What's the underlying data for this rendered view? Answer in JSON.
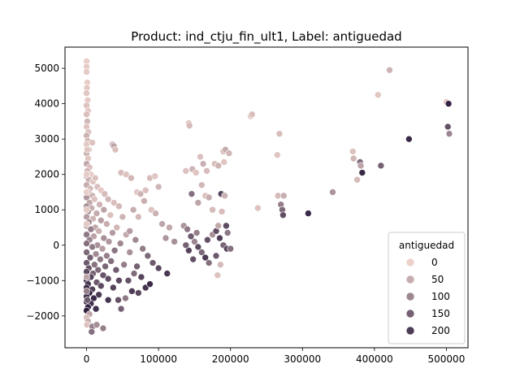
{
  "chart_data": {
    "type": "scatter",
    "title": "Product: ind_ctju_fin_ult1, Label: antiguedad",
    "xlabel": "",
    "ylabel": "",
    "xlim": [
      -30000,
      530000
    ],
    "ylim": [
      -2900,
      5600
    ],
    "xticks": [
      0,
      100000,
      200000,
      300000,
      400000,
      500000
    ],
    "xtick_labels": [
      "0",
      "100000",
      "200000",
      "300000",
      "400000",
      "500000"
    ],
    "yticks": [
      -2000,
      -1000,
      0,
      1000,
      2000,
      3000,
      4000,
      5000
    ],
    "ytick_labels": [
      "−2000",
      "−1000",
      "0",
      "1000",
      "2000",
      "3000",
      "4000",
      "5000"
    ],
    "grid": false,
    "hue": {
      "name": "antiguedad",
      "min": 0,
      "max": 240,
      "color_low": "#edd1cb",
      "color_high": "#2d1e3e"
    },
    "legend": {
      "title": "antiguedad",
      "placement": "lower-right",
      "entries": [
        {
          "label": "0",
          "value": 0
        },
        {
          "label": "50",
          "value": 50
        },
        {
          "label": "100",
          "value": 100
        },
        {
          "label": "150",
          "value": 150
        },
        {
          "label": "200",
          "value": 200
        }
      ]
    },
    "points": [
      {
        "x": 0,
        "y": 5200,
        "c": 5
      },
      {
        "x": 0,
        "y": 5050,
        "c": 8
      },
      {
        "x": 0,
        "y": 4900,
        "c": 10
      },
      {
        "x": 1000,
        "y": 4600,
        "c": 6
      },
      {
        "x": 500,
        "y": 4450,
        "c": 12
      },
      {
        "x": 0,
        "y": 4300,
        "c": 15
      },
      {
        "x": 1500,
        "y": 4100,
        "c": 9
      },
      {
        "x": 0,
        "y": 3950,
        "c": 20
      },
      {
        "x": 2000,
        "y": 3800,
        "c": 14
      },
      {
        "x": 0,
        "y": 3700,
        "c": 25
      },
      {
        "x": 1000,
        "y": 3500,
        "c": 35
      },
      {
        "x": 0,
        "y": 3350,
        "c": 18
      },
      {
        "x": 2500,
        "y": 3200,
        "c": 22
      },
      {
        "x": 0,
        "y": 3100,
        "c": 40
      },
      {
        "x": 1500,
        "y": 2950,
        "c": 30
      },
      {
        "x": 0,
        "y": 2850,
        "c": 12
      },
      {
        "x": 3000,
        "y": 2700,
        "c": 28
      },
      {
        "x": 8000,
        "y": 2900,
        "c": 20
      },
      {
        "x": 0,
        "y": 2600,
        "c": 45
      },
      {
        "x": 2000,
        "y": 2450,
        "c": 15
      },
      {
        "x": 0,
        "y": 2300,
        "c": 55
      },
      {
        "x": 4000,
        "y": 2200,
        "c": 25
      },
      {
        "x": 1000,
        "y": 2100,
        "c": 35
      },
      {
        "x": 6000,
        "y": 2000,
        "c": 10
      },
      {
        "x": 0,
        "y": 1950,
        "c": 60
      },
      {
        "x": 3000,
        "y": 1850,
        "c": 42
      },
      {
        "x": 9000,
        "y": 1800,
        "c": 18
      },
      {
        "x": 12000,
        "y": 1900,
        "c": 22
      },
      {
        "x": 0,
        "y": 1700,
        "c": 50
      },
      {
        "x": 5000,
        "y": 1600,
        "c": 30
      },
      {
        "x": 15000,
        "y": 1650,
        "c": 26
      },
      {
        "x": 2000,
        "y": 1500,
        "c": 65
      },
      {
        "x": 20000,
        "y": 1550,
        "c": 12
      },
      {
        "x": 8000,
        "y": 1400,
        "c": 40
      },
      {
        "x": 25000,
        "y": 1450,
        "c": 30
      },
      {
        "x": 0,
        "y": 1350,
        "c": 75
      },
      {
        "x": 11000,
        "y": 1300,
        "c": 20
      },
      {
        "x": 30000,
        "y": 1300,
        "c": 35
      },
      {
        "x": 4000,
        "y": 1200,
        "c": 55
      },
      {
        "x": 18000,
        "y": 1150,
        "c": 38
      },
      {
        "x": 38000,
        "y": 1200,
        "c": 25
      },
      {
        "x": 0,
        "y": 1100,
        "c": 85
      },
      {
        "x": 7000,
        "y": 1050,
        "c": 45
      },
      {
        "x": 24000,
        "y": 1000,
        "c": 60
      },
      {
        "x": 45000,
        "y": 1100,
        "c": 32
      },
      {
        "x": 2000,
        "y": 950,
        "c": 95
      },
      {
        "x": 14000,
        "y": 900,
        "c": 50
      },
      {
        "x": 33000,
        "y": 850,
        "c": 22
      },
      {
        "x": 0,
        "y": 800,
        "c": 70
      },
      {
        "x": 9000,
        "y": 750,
        "c": 38
      },
      {
        "x": 20000,
        "y": 700,
        "c": 66
      },
      {
        "x": 50000,
        "y": 800,
        "c": 40
      },
      {
        "x": 3000,
        "y": 650,
        "c": 100
      },
      {
        "x": 28000,
        "y": 600,
        "c": 48
      },
      {
        "x": 0,
        "y": 550,
        "c": 80
      },
      {
        "x": 12000,
        "y": 500,
        "c": 58
      },
      {
        "x": 42000,
        "y": 500,
        "c": 35
      },
      {
        "x": 6000,
        "y": 450,
        "c": 110
      },
      {
        "x": 17000,
        "y": 400,
        "c": 44
      },
      {
        "x": 36000,
        "y": 350,
        "c": 72
      },
      {
        "x": 0,
        "y": 300,
        "c": 120
      },
      {
        "x": 10000,
        "y": 250,
        "c": 64
      },
      {
        "x": 24000,
        "y": 200,
        "c": 90
      },
      {
        "x": 55000,
        "y": 300,
        "c": 52
      },
      {
        "x": 4000,
        "y": 150,
        "c": 105
      },
      {
        "x": 31000,
        "y": 100,
        "c": 76
      },
      {
        "x": 0,
        "y": 50,
        "c": 130
      },
      {
        "x": 15000,
        "y": 0,
        "c": 84
      },
      {
        "x": 47000,
        "y": 50,
        "c": 98
      },
      {
        "x": 8000,
        "y": -50,
        "c": 115
      },
      {
        "x": 22000,
        "y": -100,
        "c": 70
      },
      {
        "x": 39000,
        "y": -150,
        "c": 122
      },
      {
        "x": 0,
        "y": -200,
        "c": 140
      },
      {
        "x": 13000,
        "y": -250,
        "c": 92
      },
      {
        "x": 28000,
        "y": -300,
        "c": 108
      },
      {
        "x": 60000,
        "y": -200,
        "c": 86
      },
      {
        "x": 5000,
        "y": -350,
        "c": 150
      },
      {
        "x": 19000,
        "y": -400,
        "c": 118
      },
      {
        "x": 34000,
        "y": -450,
        "c": 132
      },
      {
        "x": 0,
        "y": -500,
        "c": 160
      },
      {
        "x": 11000,
        "y": -550,
        "c": 126
      },
      {
        "x": 26000,
        "y": -600,
        "c": 144
      },
      {
        "x": 52000,
        "y": -550,
        "c": 112
      },
      {
        "x": 3000,
        "y": -650,
        "c": 170
      },
      {
        "x": 16000,
        "y": -700,
        "c": 138
      },
      {
        "x": 41000,
        "y": -700,
        "c": 156
      },
      {
        "x": 0,
        "y": -750,
        "c": 180
      },
      {
        "x": 9000,
        "y": -800,
        "c": 148
      },
      {
        "x": 23000,
        "y": -850,
        "c": 166
      },
      {
        "x": 66000,
        "y": -800,
        "c": 134
      },
      {
        "x": 6000,
        "y": -900,
        "c": 190
      },
      {
        "x": 30000,
        "y": -950,
        "c": 174
      },
      {
        "x": 0,
        "y": -1000,
        "c": 200
      },
      {
        "x": 14000,
        "y": -1050,
        "c": 162
      },
      {
        "x": 45000,
        "y": -1000,
        "c": 184
      },
      {
        "x": 2000,
        "y": -1100,
        "c": 210
      },
      {
        "x": 20000,
        "y": -1150,
        "c": 178
      },
      {
        "x": 0,
        "y": -1200,
        "c": 220
      },
      {
        "x": 8000,
        "y": -1250,
        "c": 196
      },
      {
        "x": 37000,
        "y": -1200,
        "c": 188
      },
      {
        "x": 4000,
        "y": -1350,
        "c": 230
      },
      {
        "x": 17000,
        "y": -1400,
        "c": 204
      },
      {
        "x": 0,
        "y": -1450,
        "c": 215
      },
      {
        "x": 10000,
        "y": -1500,
        "c": 225
      },
      {
        "x": 30000,
        "y": -1550,
        "c": 208
      },
      {
        "x": 0,
        "y": -1600,
        "c": 235
      },
      {
        "x": 6000,
        "y": -1650,
        "c": 212
      },
      {
        "x": 2000,
        "y": -1750,
        "c": 226
      },
      {
        "x": 13000,
        "y": -1800,
        "c": 218
      },
      {
        "x": 0,
        "y": -1850,
        "c": 238
      },
      {
        "x": 4000,
        "y": -1950,
        "c": 60
      },
      {
        "x": 0,
        "y": -2050,
        "c": 30
      },
      {
        "x": 2000,
        "y": -2150,
        "c": 50
      },
      {
        "x": 500,
        "y": -2250,
        "c": 20
      },
      {
        "x": 8000,
        "y": -2300,
        "c": 110
      },
      {
        "x": 14000,
        "y": -2250,
        "c": 90
      },
      {
        "x": 7000,
        "y": -2450,
        "c": 130
      },
      {
        "x": 23000,
        "y": -2350,
        "c": 110
      },
      {
        "x": 48000,
        "y": -1800,
        "c": 150
      },
      {
        "x": 44000,
        "y": -1550,
        "c": 170
      },
      {
        "x": 54000,
        "y": -1500,
        "c": 120
      },
      {
        "x": 0,
        "y": 1000,
        "c": 10
      },
      {
        "x": 0,
        "y": 1500,
        "c": 5
      },
      {
        "x": 0,
        "y": 2000,
        "c": 8
      },
      {
        "x": 1000,
        "y": 2700,
        "c": 15
      },
      {
        "x": 0,
        "y": 600,
        "c": 12
      },
      {
        "x": 0,
        "y": -900,
        "c": 60
      },
      {
        "x": 0,
        "y": -1300,
        "c": 110
      },
      {
        "x": 1000,
        "y": -1550,
        "c": 160
      },
      {
        "x": 36000,
        "y": 2850,
        "c": 30
      },
      {
        "x": 38000,
        "y": 2800,
        "c": 60
      },
      {
        "x": 40000,
        "y": 2700,
        "c": 22
      },
      {
        "x": 48000,
        "y": 2050,
        "c": 28
      },
      {
        "x": 55000,
        "y": 2000,
        "c": 20
      },
      {
        "x": 62000,
        "y": 1900,
        "c": 35
      },
      {
        "x": 70000,
        "y": 1500,
        "c": 14
      },
      {
        "x": 75000,
        "y": 1450,
        "c": 40
      },
      {
        "x": 82000,
        "y": 1550,
        "c": 24
      },
      {
        "x": 88000,
        "y": 1900,
        "c": 30
      },
      {
        "x": 95000,
        "y": 1950,
        "c": 16
      },
      {
        "x": 100000,
        "y": 1650,
        "c": 38
      },
      {
        "x": 65000,
        "y": 1000,
        "c": 50
      },
      {
        "x": 72000,
        "y": 800,
        "c": 32
      },
      {
        "x": 80000,
        "y": 1250,
        "c": 44
      },
      {
        "x": 90000,
        "y": 1000,
        "c": 20
      },
      {
        "x": 105000,
        "y": 600,
        "c": 60
      },
      {
        "x": 110000,
        "y": 200,
        "c": 80
      },
      {
        "x": 60000,
        "y": 400,
        "c": 70
      },
      {
        "x": 68000,
        "y": 150,
        "c": 96
      },
      {
        "x": 78000,
        "y": -100,
        "c": 112
      },
      {
        "x": 85000,
        "y": -300,
        "c": 140
      },
      {
        "x": 92000,
        "y": -500,
        "c": 158
      },
      {
        "x": 100000,
        "y": -650,
        "c": 180
      },
      {
        "x": 70000,
        "y": -600,
        "c": 150
      },
      {
        "x": 76000,
        "y": -900,
        "c": 190
      },
      {
        "x": 82000,
        "y": -1200,
        "c": 212
      },
      {
        "x": 58000,
        "y": -1000,
        "c": 170
      },
      {
        "x": 63000,
        "y": -1300,
        "c": 200
      },
      {
        "x": 72000,
        "y": -1350,
        "c": 185
      },
      {
        "x": 88000,
        "y": -1100,
        "c": 222
      },
      {
        "x": 96000,
        "y": 900,
        "c": 42
      },
      {
        "x": 112000,
        "y": -800,
        "c": 205
      },
      {
        "x": 115000,
        "y": 500,
        "c": 55
      },
      {
        "x": 122000,
        "y": 100,
        "c": 88
      },
      {
        "x": 142000,
        "y": 3450,
        "c": 15
      },
      {
        "x": 143000,
        "y": 3380,
        "c": 30
      },
      {
        "x": 138000,
        "y": 2100,
        "c": 20
      },
      {
        "x": 147000,
        "y": 2150,
        "c": 40
      },
      {
        "x": 152000,
        "y": 2050,
        "c": 18
      },
      {
        "x": 158000,
        "y": 2500,
        "c": 22
      },
      {
        "x": 162000,
        "y": 2300,
        "c": 45
      },
      {
        "x": 167000,
        "y": 2100,
        "c": 28
      },
      {
        "x": 160000,
        "y": 1700,
        "c": 35
      },
      {
        "x": 146000,
        "y": 1450,
        "c": 130
      },
      {
        "x": 155000,
        "y": 1200,
        "c": 60
      },
      {
        "x": 165000,
        "y": 1400,
        "c": 20
      },
      {
        "x": 170000,
        "y": 1350,
        "c": 48
      },
      {
        "x": 175000,
        "y": 1000,
        "c": 30
      },
      {
        "x": 135000,
        "y": 550,
        "c": 80
      },
      {
        "x": 140000,
        "y": 450,
        "c": 120
      },
      {
        "x": 145000,
        "y": 250,
        "c": 160
      },
      {
        "x": 150000,
        "y": 100,
        "c": 100
      },
      {
        "x": 155000,
        "y": -50,
        "c": 180
      },
      {
        "x": 160000,
        "y": -200,
        "c": 140
      },
      {
        "x": 165000,
        "y": -350,
        "c": 200
      },
      {
        "x": 170000,
        "y": -500,
        "c": 130
      },
      {
        "x": 148000,
        "y": -400,
        "c": 170
      },
      {
        "x": 142000,
        "y": -150,
        "c": 190
      },
      {
        "x": 138000,
        "y": 0,
        "c": 150
      },
      {
        "x": 153000,
        "y": 350,
        "c": 110
      },
      {
        "x": 168000,
        "y": 150,
        "c": 170
      },
      {
        "x": 175000,
        "y": 300,
        "c": 90
      },
      {
        "x": 180000,
        "y": 400,
        "c": 175
      },
      {
        "x": 185000,
        "y": 200,
        "c": 200
      },
      {
        "x": 190000,
        "y": 0,
        "c": 145
      },
      {
        "x": 195000,
        "y": -100,
        "c": 190
      },
      {
        "x": 180000,
        "y": -300,
        "c": 160
      },
      {
        "x": 186000,
        "y": -550,
        "c": 30
      },
      {
        "x": 182000,
        "y": -850,
        "c": 20
      },
      {
        "x": 200000,
        "y": -100,
        "c": 130
      },
      {
        "x": 178000,
        "y": 2300,
        "c": 25
      },
      {
        "x": 183000,
        "y": 2250,
        "c": 40
      },
      {
        "x": 190000,
        "y": 2650,
        "c": 22
      },
      {
        "x": 193000,
        "y": 2700,
        "c": 50
      },
      {
        "x": 198000,
        "y": 2600,
        "c": 35
      },
      {
        "x": 191000,
        "y": 2350,
        "c": 18
      },
      {
        "x": 187000,
        "y": 1450,
        "c": 190
      },
      {
        "x": 192000,
        "y": 1400,
        "c": 42
      },
      {
        "x": 188000,
        "y": 950,
        "c": 28
      },
      {
        "x": 194000,
        "y": 550,
        "c": 180
      },
      {
        "x": 196000,
        "y": 350,
        "c": 120
      },
      {
        "x": 183000,
        "y": 550,
        "c": 55
      },
      {
        "x": 228000,
        "y": 3650,
        "c": 12
      },
      {
        "x": 230000,
        "y": 3700,
        "c": 25
      },
      {
        "x": 238000,
        "y": 1050,
        "c": 20
      },
      {
        "x": 265000,
        "y": 2550,
        "c": 18
      },
      {
        "x": 268000,
        "y": 3150,
        "c": 28
      },
      {
        "x": 266000,
        "y": 1400,
        "c": 30
      },
      {
        "x": 270000,
        "y": 1150,
        "c": 110
      },
      {
        "x": 272000,
        "y": 1000,
        "c": 140
      },
      {
        "x": 273000,
        "y": 850,
        "c": 175
      },
      {
        "x": 274000,
        "y": 1400,
        "c": 45
      },
      {
        "x": 308000,
        "y": 900,
        "c": 225
      },
      {
        "x": 342000,
        "y": 1500,
        "c": 80
      },
      {
        "x": 370000,
        "y": 2650,
        "c": 20
      },
      {
        "x": 371000,
        "y": 2450,
        "c": 35
      },
      {
        "x": 376000,
        "y": 1850,
        "c": 30
      },
      {
        "x": 380000,
        "y": 2350,
        "c": 140
      },
      {
        "x": 381000,
        "y": 2250,
        "c": 60
      },
      {
        "x": 383000,
        "y": 2050,
        "c": 225
      },
      {
        "x": 405000,
        "y": 4250,
        "c": 15
      },
      {
        "x": 409000,
        "y": 2250,
        "c": 150
      },
      {
        "x": 421000,
        "y": 4950,
        "c": 40
      },
      {
        "x": 448000,
        "y": 3000,
        "c": 225
      },
      {
        "x": 500000,
        "y": 4050,
        "c": 12
      },
      {
        "x": 503000,
        "y": 4000,
        "c": 235
      },
      {
        "x": 502000,
        "y": 3350,
        "c": 170
      },
      {
        "x": 504000,
        "y": 3150,
        "c": 100
      }
    ]
  }
}
